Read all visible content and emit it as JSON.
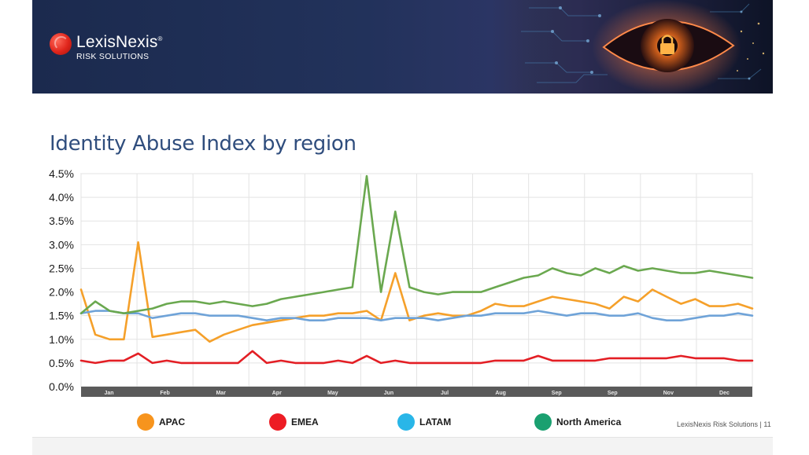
{
  "banner": {
    "brand_name": "LexisNexis",
    "brand_reg": "®",
    "brand_sub": "RISK SOLUTIONS",
    "art_icon": "eye-with-padlock"
  },
  "title": "Identity Abuse Index by region",
  "footer": "LexisNexis Risk Solutions | 11",
  "legend": [
    {
      "label": "APAC",
      "color": "#f7941d"
    },
    {
      "label": "EMEA",
      "color": "#ed1c24"
    },
    {
      "label": "LATAM",
      "color": "#29b6e8"
    },
    {
      "label": "North America",
      "color": "#1aa070"
    }
  ],
  "chart_data": {
    "type": "line",
    "title": "",
    "xlabel": "",
    "ylabel": "",
    "ylim": [
      0,
      4.5
    ],
    "y_ticks": [
      "0.0%",
      "0.5%",
      "1.0%",
      "1.5%",
      "2.0%",
      "2.5%",
      "3.0%",
      "3.5%",
      "4.0%",
      "4.5%"
    ],
    "x_tick_labels": [
      "Jan",
      "Feb",
      "Mar",
      "Apr",
      "May",
      "Jun",
      "Jul",
      "Aug",
      "Sep",
      "Sep",
      "Nov",
      "Dec"
    ],
    "grid": true,
    "x": [
      "Jan",
      "Jan",
      "Jan",
      "Jan",
      "Feb",
      "Feb",
      "Feb",
      "Feb",
      "Mar",
      "Mar",
      "Mar",
      "Mar",
      "Apr",
      "Apr",
      "Apr",
      "Apr",
      "May",
      "May",
      "May",
      "May",
      "Jun",
      "Jun",
      "Jun",
      "Jun",
      "Jul",
      "Jul",
      "Jul",
      "Jul",
      "Aug",
      "Aug",
      "Aug",
      "Aug",
      "Sep",
      "Sep",
      "Sep",
      "Sep",
      "Sep",
      "Sep",
      "Sep",
      "Sep",
      "Nov",
      "Nov",
      "Nov",
      "Nov",
      "Dec",
      "Dec",
      "Dec",
      "Dec"
    ],
    "series": [
      {
        "name": "APAC",
        "color": "#f5a02a",
        "values": [
          2.05,
          1.1,
          1.0,
          1.0,
          3.05,
          1.05,
          1.1,
          1.15,
          1.2,
          0.95,
          1.1,
          1.2,
          1.3,
          1.35,
          1.4,
          1.45,
          1.5,
          1.5,
          1.55,
          1.55,
          1.6,
          1.4,
          2.4,
          1.4,
          1.5,
          1.55,
          1.5,
          1.5,
          1.6,
          1.75,
          1.7,
          1.7,
          1.8,
          1.9,
          1.85,
          1.8,
          1.75,
          1.65,
          1.9,
          1.8,
          2.05,
          1.9,
          1.75,
          1.85,
          1.7,
          1.7,
          1.75,
          1.65
        ]
      },
      {
        "name": "EMEA",
        "color": "#e31e24",
        "values": [
          0.55,
          0.5,
          0.55,
          0.55,
          0.7,
          0.5,
          0.55,
          0.5,
          0.5,
          0.5,
          0.5,
          0.5,
          0.75,
          0.5,
          0.55,
          0.5,
          0.5,
          0.5,
          0.55,
          0.5,
          0.65,
          0.5,
          0.55,
          0.5,
          0.5,
          0.5,
          0.5,
          0.5,
          0.5,
          0.55,
          0.55,
          0.55,
          0.65,
          0.55,
          0.55,
          0.55,
          0.55,
          0.6,
          0.6,
          0.6,
          0.6,
          0.6,
          0.65,
          0.6,
          0.6,
          0.6,
          0.55,
          0.55
        ]
      },
      {
        "name": "LATAM",
        "color": "#6fa3d8",
        "values": [
          1.55,
          1.6,
          1.6,
          1.55,
          1.55,
          1.45,
          1.5,
          1.55,
          1.55,
          1.5,
          1.5,
          1.5,
          1.45,
          1.4,
          1.45,
          1.45,
          1.4,
          1.4,
          1.45,
          1.45,
          1.45,
          1.4,
          1.45,
          1.45,
          1.45,
          1.4,
          1.45,
          1.5,
          1.5,
          1.55,
          1.55,
          1.55,
          1.6,
          1.55,
          1.5,
          1.55,
          1.55,
          1.5,
          1.5,
          1.55,
          1.45,
          1.4,
          1.4,
          1.45,
          1.5,
          1.5,
          1.55,
          1.5
        ]
      },
      {
        "name": "North America",
        "color": "#6aa84f",
        "values": [
          1.55,
          1.8,
          1.6,
          1.55,
          1.6,
          1.65,
          1.75,
          1.8,
          1.8,
          1.75,
          1.8,
          1.75,
          1.7,
          1.75,
          1.85,
          1.9,
          1.95,
          2.0,
          2.05,
          2.1,
          4.45,
          2.0,
          3.7,
          2.1,
          2.0,
          1.95,
          2.0,
          2.0,
          2.0,
          2.1,
          2.2,
          2.3,
          2.35,
          2.5,
          2.4,
          2.35,
          2.5,
          2.4,
          2.55,
          2.45,
          2.5,
          2.45,
          2.4,
          2.4,
          2.45,
          2.4,
          2.35,
          2.3
        ]
      }
    ]
  }
}
